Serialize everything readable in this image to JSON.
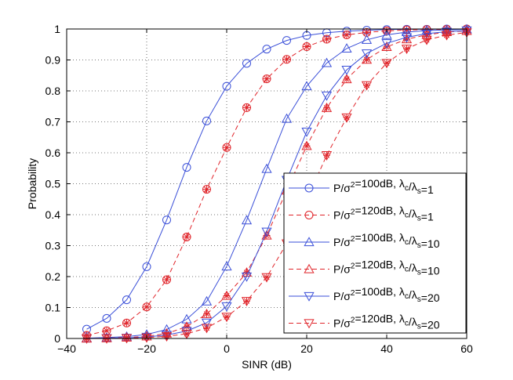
{
  "chart_data": {
    "type": "line",
    "title": "",
    "xlabel": "SINR (dB)",
    "ylabel": "Probability",
    "xlim": [
      -40,
      60
    ],
    "ylim": [
      0,
      1
    ],
    "xticks": [
      -40,
      -20,
      0,
      20,
      40,
      60
    ],
    "xtick_labels": [
      "−40",
      "−20",
      "0",
      "20",
      "40",
      "60"
    ],
    "yticks": [
      0,
      0.1,
      0.2,
      0.3,
      0.4,
      0.5,
      0.6,
      0.7,
      0.8,
      0.9,
      1
    ],
    "ytick_labels": [
      "0",
      "0.1",
      "0.2",
      "0.3",
      "0.4",
      "0.5",
      "0.6",
      "0.7",
      "0.8",
      "0.9",
      "1"
    ],
    "grid": true,
    "legend_position": "lower-right",
    "x": [
      -35,
      -30,
      -25,
      -20,
      -15,
      -10,
      -5,
      0,
      5,
      10,
      15,
      20,
      25,
      30,
      35,
      40,
      45,
      50,
      55,
      60
    ],
    "series": [
      {
        "name": "P/σ²=100dB, λ_c/λ_s=1",
        "legend": {
          "base": "P/σ",
          "sup": "2",
          "mid": "=100dB, λ",
          "sub1": "c",
          "slash": "/λ",
          "sub2": "s",
          "tail": "=1"
        },
        "color": "#3a4fd8",
        "dash": "solid",
        "marker": "circle",
        "sim_marker": "",
        "values": [
          0.03,
          0.065,
          0.125,
          0.232,
          0.383,
          0.553,
          0.703,
          0.815,
          0.889,
          0.935,
          0.963,
          0.979,
          0.988,
          0.993,
          0.996,
          0.998,
          0.999,
          0.999,
          1.0,
          1.0
        ]
      },
      {
        "name": "P/σ²=120dB, λ_c/λ_s=1",
        "legend": {
          "base": "P/σ",
          "sup": "2",
          "mid": "=120dB, λ",
          "sub1": "c",
          "slash": "/λ",
          "sub2": "s",
          "tail": "=1"
        },
        "color": "#e0242a",
        "dash": "dashed",
        "marker": "circle",
        "sim_marker": "star",
        "values": [
          0.01,
          0.025,
          0.05,
          0.102,
          0.19,
          0.328,
          0.482,
          0.617,
          0.746,
          0.839,
          0.902,
          0.943,
          0.967,
          0.981,
          0.989,
          0.994,
          0.997,
          0.998,
          0.999,
          1.0
        ]
      },
      {
        "name": "P/σ²=100dB, λ_c/λ_s=10",
        "legend": {
          "base": "P/σ",
          "sup": "2",
          "mid": "=100dB, λ",
          "sub1": "c",
          "slash": "/λ",
          "sub2": "s",
          "tail": "=10"
        },
        "color": "#3a4fd8",
        "dash": "solid",
        "marker": "triangle-up",
        "sim_marker": "",
        "values": [
          0.001,
          0.003,
          0.006,
          0.013,
          0.029,
          0.062,
          0.12,
          0.233,
          0.382,
          0.548,
          0.71,
          0.815,
          0.89,
          0.937,
          0.965,
          0.981,
          0.99,
          0.995,
          0.997,
          0.999
        ]
      },
      {
        "name": "P/σ²=120dB, λ_c/λ_s=10",
        "legend": {
          "base": "P/σ",
          "sup": "2",
          "mid": "=120dB, λ",
          "sub1": "c",
          "slash": "/λ",
          "sub2": "s",
          "tail": "=10"
        },
        "color": "#e0242a",
        "dash": "dashed",
        "marker": "triangle-up",
        "sim_marker": "star",
        "values": [
          0.0,
          0.001,
          0.003,
          0.007,
          0.016,
          0.038,
          0.079,
          0.138,
          0.213,
          0.333,
          0.478,
          0.622,
          0.745,
          0.838,
          0.901,
          0.942,
          0.967,
          0.981,
          0.99,
          0.994
        ]
      },
      {
        "name": "P/σ²=100dB, λ_c/λ_s=20",
        "legend": {
          "base": "P/σ",
          "sup": "2",
          "mid": "=100dB, λ",
          "sub1": "c",
          "slash": "/λ",
          "sub2": "s",
          "tail": "=20"
        },
        "color": "#3a4fd8",
        "dash": "solid",
        "marker": "triangle-down",
        "sim_marker": "",
        "values": [
          0.0,
          0.001,
          0.002,
          0.005,
          0.011,
          0.024,
          0.051,
          0.104,
          0.2,
          0.345,
          0.512,
          0.668,
          0.785,
          0.868,
          0.921,
          0.954,
          0.973,
          0.985,
          0.991,
          0.995
        ]
      },
      {
        "name": "P/σ²=120dB, λ_c/λ_s=20",
        "legend": {
          "base": "P/σ",
          "sup": "2",
          "mid": "=120dB, λ",
          "sub1": "c",
          "slash": "/λ",
          "sub2": "s",
          "tail": "=20"
        },
        "color": "#e0242a",
        "dash": "dashed",
        "marker": "triangle-down",
        "sim_marker": "star",
        "values": [
          0.0,
          0.0,
          0.001,
          0.003,
          0.007,
          0.015,
          0.034,
          0.07,
          0.121,
          0.198,
          0.307,
          0.447,
          0.592,
          0.714,
          0.818,
          0.89,
          0.936,
          0.965,
          0.98,
          0.989
        ]
      }
    ]
  }
}
